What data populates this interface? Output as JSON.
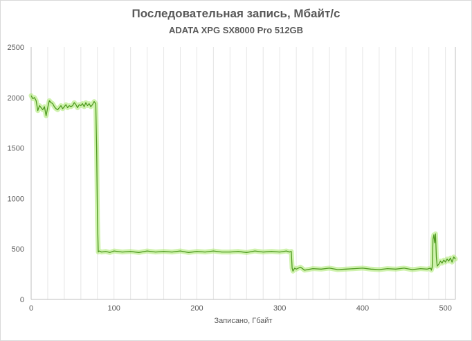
{
  "chart_data": {
    "type": "line",
    "title": "Последовательная запись, Мбайт/с",
    "subtitle": "ADATA XPG SX8000  Pro 512GB",
    "xlabel": "Записано, Гбайт",
    "ylabel": "",
    "xlim": [
      0,
      512
    ],
    "ylim": [
      0,
      2500
    ],
    "xticks": [
      0,
      100,
      200,
      300,
      400,
      500
    ],
    "yticks": [
      0,
      500,
      1000,
      1500,
      2000,
      2500
    ],
    "grid": "vertical",
    "legend": "none",
    "series": [
      {
        "color": "#4e9a1f",
        "glow_color": "#a8e86a",
        "x": [
          0,
          2,
          4,
          6,
          8,
          10,
          12,
          14,
          16,
          18,
          20,
          22,
          24,
          26,
          28,
          30,
          32,
          34,
          36,
          38,
          40,
          42,
          44,
          46,
          48,
          50,
          52,
          54,
          56,
          58,
          60,
          62,
          64,
          66,
          68,
          70,
          72,
          74,
          76,
          78,
          79,
          80,
          81,
          82,
          85,
          90,
          95,
          100,
          110,
          120,
          130,
          140,
          150,
          160,
          170,
          180,
          190,
          200,
          210,
          220,
          230,
          240,
          250,
          260,
          270,
          280,
          290,
          300,
          308,
          312,
          314,
          315,
          316,
          318,
          320,
          325,
          330,
          340,
          350,
          360,
          370,
          380,
          390,
          400,
          410,
          420,
          430,
          440,
          450,
          460,
          470,
          478,
          482,
          483,
          484,
          485,
          486,
          487,
          488,
          489,
          490,
          492,
          494,
          496,
          498,
          500,
          502,
          504,
          506,
          508,
          510,
          512
        ],
        "values": [
          2020,
          1990,
          2000,
          1970,
          1870,
          1920,
          1900,
          1880,
          1910,
          1820,
          1900,
          1970,
          1950,
          1940,
          1910,
          1890,
          1880,
          1900,
          1920,
          1890,
          1910,
          1930,
          1900,
          1920,
          1910,
          1920,
          1950,
          1930,
          1900,
          1930,
          1920,
          1940,
          1910,
          1950,
          1920,
          1940,
          1910,
          1930,
          1960,
          1940,
          1500,
          800,
          470,
          480,
          470,
          475,
          465,
          480,
          470,
          475,
          465,
          480,
          470,
          475,
          470,
          480,
          465,
          475,
          470,
          480,
          470,
          470,
          475,
          465,
          480,
          470,
          475,
          470,
          480,
          470,
          475,
          310,
          280,
          310,
          300,
          320,
          290,
          305,
          300,
          310,
          295,
          300,
          305,
          310,
          300,
          295,
          305,
          300,
          310,
          295,
          305,
          300,
          310,
          290,
          320,
          600,
          640,
          560,
          650,
          420,
          330,
          350,
          380,
          360,
          390,
          370,
          400,
          380,
          410,
          370,
          420,
          400
        ]
      }
    ]
  }
}
